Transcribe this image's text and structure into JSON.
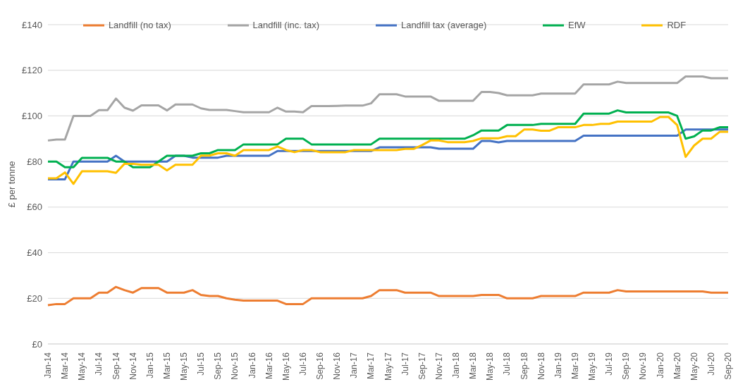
{
  "chart_data": {
    "type": "line",
    "ylabel": "£ per tonne",
    "categories": [
      "Jan-14",
      null,
      "Mar-14",
      null,
      "May-14",
      null,
      "Jul-14",
      null,
      "Sep-14",
      null,
      "Nov-14",
      null,
      "Jan-15",
      null,
      "Mar-15",
      null,
      "May-15",
      null,
      "Jul-15",
      null,
      "Sep-15",
      null,
      "Nov-15",
      null,
      "Jan-16",
      null,
      "Mar-16",
      null,
      "May-16",
      null,
      "Jul-16",
      null,
      "Sep-16",
      null,
      "Nov-16",
      null,
      "Jan-17",
      null,
      "Mar-17",
      null,
      "May-17",
      null,
      "Jul-17",
      null,
      "Sep-17",
      null,
      "Nov-17",
      null,
      "Jan-18",
      null,
      "Mar-18",
      null,
      "May-18",
      null,
      "Jul-18",
      null,
      "Sep-18",
      null,
      "Nov-18",
      null,
      "Jan-19",
      null,
      "Mar-19",
      null,
      "May-19",
      null,
      "Jul-19",
      null,
      "Sep-19",
      null,
      "Nov-19",
      null,
      "Jan-20",
      null,
      "Mar-20",
      null,
      "May-20",
      null,
      "Jul-20",
      null,
      "Sep-20"
    ],
    "series": [
      {
        "name": "Landfill (no tax)",
        "color": "#ed7d31",
        "values": [
          17,
          17.5,
          17.5,
          20,
          20,
          20,
          22.5,
          22.5,
          25,
          23.6,
          22.5,
          24.5,
          24.5,
          24.5,
          22.5,
          22.5,
          22.5,
          23.6,
          21.5,
          21,
          21,
          20,
          19.4,
          19,
          19,
          19,
          19,
          19,
          17.5,
          17.5,
          17.5,
          20,
          20,
          20,
          20,
          20,
          20,
          20,
          21,
          23.6,
          23.6,
          23.6,
          22.5,
          22.5,
          22.5,
          22.5,
          21,
          21,
          21,
          21,
          21,
          21.5,
          21.5,
          21.5,
          20,
          20,
          20,
          20,
          21,
          21,
          21,
          21,
          21,
          22.5,
          22.5,
          22.5,
          22.5,
          23.6,
          23,
          23,
          23,
          23,
          23,
          23,
          23,
          23,
          23,
          23,
          22.5,
          22.5,
          22.5
        ]
      },
      {
        "name": "Landfill (inc. tax)",
        "color": "#a5a5a5",
        "values": [
          89.2,
          89.6,
          89.6,
          100,
          100,
          100,
          102.5,
          102.5,
          107.6,
          103.6,
          102.3,
          104.6,
          104.6,
          104.6,
          102.4,
          105,
          105,
          105,
          103.3,
          102.6,
          102.6,
          102.6,
          102.1,
          101.6,
          101.6,
          101.6,
          101.6,
          103.6,
          101.9,
          101.9,
          101.6,
          104.3,
          104.3,
          104.3,
          104.4,
          104.5,
          104.5,
          104.5,
          105.5,
          109.5,
          109.5,
          109.5,
          108.5,
          108.5,
          108.5,
          108.5,
          106.6,
          106.6,
          106.6,
          106.6,
          106.6,
          110.5,
          110.5,
          110,
          109,
          109,
          109,
          109,
          109.8,
          109.8,
          109.8,
          109.8,
          109.8,
          113.8,
          113.8,
          113.8,
          113.8,
          115,
          114.4,
          114.4,
          114.4,
          114.4,
          114.4,
          114.4,
          114.4,
          117.3,
          117.3,
          117.3,
          116.5,
          116.5,
          116.5
        ]
      },
      {
        "name": "Landfill tax (average)",
        "color": "#4472c4",
        "values": [
          72.2,
          72.2,
          72.2,
          80,
          80,
          80,
          80,
          80,
          82.5,
          80,
          80,
          80,
          80,
          80,
          80,
          82.5,
          82.5,
          81.7,
          81.7,
          81.7,
          81.7,
          82.5,
          82.5,
          82.5,
          82.5,
          82.5,
          82.5,
          84.6,
          84.6,
          84.6,
          84.6,
          84.6,
          84.6,
          84.6,
          84.6,
          84.6,
          84.6,
          84.6,
          84.6,
          86.2,
          86.2,
          86.2,
          86.2,
          86.2,
          86.2,
          86.2,
          85.6,
          85.6,
          85.6,
          85.6,
          85.6,
          89,
          89,
          88.4,
          89,
          89,
          89,
          89,
          89,
          89,
          89,
          89,
          89,
          91.3,
          91.3,
          91.3,
          91.3,
          91.3,
          91.3,
          91.3,
          91.3,
          91.3,
          91.3,
          91.3,
          91.3,
          94,
          94,
          94,
          94,
          94,
          94
        ]
      },
      {
        "name": "EfW",
        "color": "#00b050",
        "values": [
          80,
          80,
          77.5,
          77.5,
          81.6,
          81.6,
          81.6,
          81.6,
          80,
          80,
          77.5,
          77.5,
          77.5,
          80,
          82.5,
          82.5,
          82.5,
          82.5,
          83.6,
          83.6,
          85,
          85,
          85,
          87.5,
          87.5,
          87.5,
          87.5,
          87.5,
          90,
          90,
          90,
          87.5,
          87.5,
          87.5,
          87.5,
          87.5,
          87.5,
          87.5,
          87.5,
          90,
          90,
          90,
          90,
          90,
          90,
          90,
          90,
          90,
          90,
          90,
          91.5,
          93.6,
          93.6,
          93.6,
          96,
          96,
          96,
          96,
          96.5,
          96.5,
          96.5,
          96.5,
          96.5,
          101,
          101,
          101,
          101,
          102.4,
          101.5,
          101.5,
          101.5,
          101.5,
          101.5,
          101.5,
          100,
          90,
          91,
          93.6,
          93.6,
          95,
          95
        ]
      },
      {
        "name": "RDF",
        "color": "#ffc000",
        "values": [
          72.6,
          72.6,
          75.2,
          70.2,
          75.7,
          75.7,
          75.7,
          75.7,
          75,
          79,
          79,
          78.6,
          78.6,
          78.6,
          76.1,
          78.6,
          78.6,
          78.6,
          82.6,
          82.6,
          83.6,
          83.6,
          82.5,
          85,
          85,
          85,
          85,
          86.6,
          85,
          84.1,
          85,
          85,
          84.1,
          84.1,
          84.1,
          84.1,
          85,
          85,
          85,
          85,
          85,
          85,
          85.5,
          85.5,
          87.2,
          89.2,
          89.2,
          88.5,
          88.5,
          88.5,
          89,
          90.2,
          90.2,
          90.2,
          91.1,
          91.1,
          94,
          94,
          93.5,
          93.5,
          95,
          95,
          95,
          96,
          96,
          96.5,
          96.5,
          97.5,
          97.5,
          97.5,
          97.5,
          97.5,
          99.5,
          99.5,
          96,
          82,
          87,
          90,
          90,
          93,
          93
        ]
      }
    ],
    "ylim": [
      0,
      140
    ],
    "yticks": [
      {
        "value": 0,
        "label": "£0"
      },
      {
        "value": 20,
        "label": "£20"
      },
      {
        "value": 40,
        "label": "£40"
      },
      {
        "value": 60,
        "label": "£60"
      },
      {
        "value": 80,
        "label": "£80"
      },
      {
        "value": 100,
        "label": "£100"
      },
      {
        "value": 120,
        "label": "£120"
      },
      {
        "value": 140,
        "label": "£140"
      }
    ],
    "grid": "y",
    "legend": "top",
    "marker": "none",
    "line_style": "solid"
  }
}
